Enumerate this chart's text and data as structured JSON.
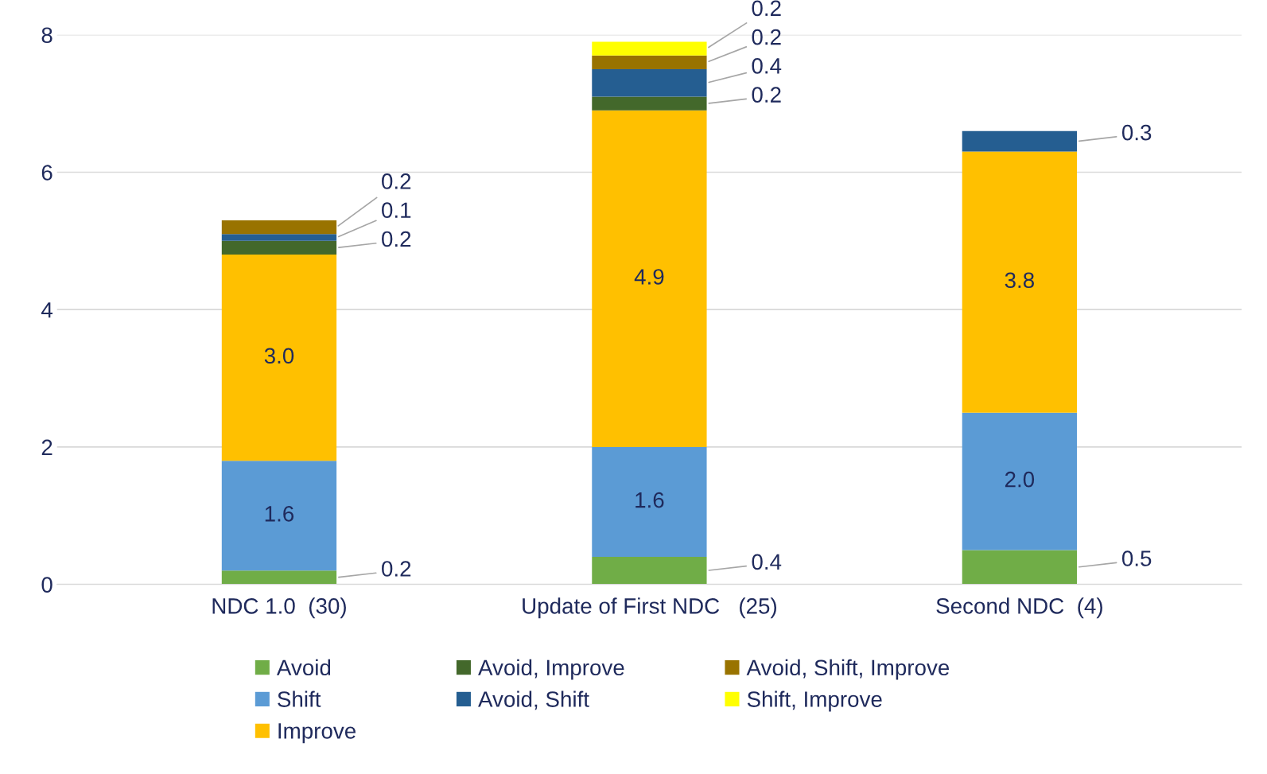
{
  "chart_data": {
    "type": "bar",
    "stacked": true,
    "categories": [
      "NDC 1.0  (30)",
      "Update of First NDC   (25)",
      "Second NDC  (4)"
    ],
    "series": [
      {
        "name": "Avoid",
        "color": "#70ad47",
        "values": [
          0.2,
          0.4,
          0.5
        ],
        "value_labels": [
          "0.2",
          "0.4",
          "0.5"
        ]
      },
      {
        "name": "Shift",
        "color": "#5b9bd5",
        "values": [
          1.6,
          1.6,
          2.0
        ],
        "value_labels": [
          "1.6",
          "1.6",
          "2.0"
        ]
      },
      {
        "name": "Improve",
        "color": "#ffc000",
        "values": [
          3.0,
          4.9,
          3.8
        ],
        "value_labels": [
          "3.0",
          "4.9",
          "3.8"
        ]
      },
      {
        "name": "Avoid, Improve",
        "color": "#43682b",
        "values": [
          0.2,
          0.2,
          null
        ],
        "value_labels": [
          "0.2",
          "0.2",
          null
        ]
      },
      {
        "name": "Avoid, Shift",
        "color": "#255e91",
        "values": [
          0.1,
          0.4,
          0.3
        ],
        "value_labels": [
          "0.1",
          "0.4",
          "0.3"
        ]
      },
      {
        "name": "Avoid, Shift, Improve",
        "color": "#997300",
        "values": [
          0.2,
          0.2,
          null
        ],
        "value_labels": [
          "0.2",
          "0.2",
          null
        ]
      },
      {
        "name": "Shift, Improve",
        "color": "#ffff00",
        "values": [
          null,
          0.2,
          null
        ],
        "value_labels": [
          null,
          "0.2",
          null
        ]
      }
    ],
    "ylim": [
      0,
      8
    ],
    "yticks": [
      0,
      2,
      4,
      6,
      8
    ],
    "grid": "y",
    "legend": "bottom"
  }
}
